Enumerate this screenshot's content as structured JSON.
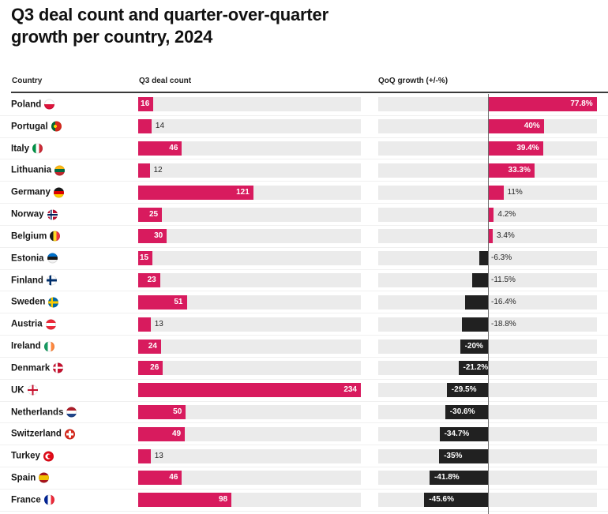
{
  "title": "Q3 deal count and quarter-over-quarter growth per country, 2024",
  "title_lines": "Q3 deal count and quarter-over-quarter\ngrowth per country, 2024",
  "columns": {
    "country": "Country",
    "deals": "Q3 deal count",
    "qoq": "QoQ growth (+/-%)"
  },
  "colors": {
    "positive_bar": "#d81b5e",
    "negative_bar": "#212121",
    "track": "#ebebeb",
    "axis_line": "#6e6e6e",
    "text": "#161616"
  },
  "axes": {
    "deal_count_max": 234,
    "qoq_min": -78,
    "qoq_max": 78,
    "qoq_zero_line": true
  },
  "chart_data": {
    "type": "bar",
    "title": "Q3 deal count and quarter-over-quarter growth per country, 2024",
    "orientation": "horizontal",
    "grid": false,
    "legend": "none",
    "categories": [
      "Poland",
      "Portugal",
      "Italy",
      "Lithuania",
      "Germany",
      "Norway",
      "Belgium",
      "Estonia",
      "Finland",
      "Sweden",
      "Austria",
      "Ireland",
      "Denmark",
      "UK",
      "Netherlands",
      "Switzerland",
      "Turkey",
      "Spain",
      "France"
    ],
    "series": [
      {
        "name": "Q3 deal count",
        "axis_range": [
          0,
          234
        ],
        "values": [
          16,
          14,
          46,
          12,
          121,
          25,
          30,
          15,
          23,
          51,
          13,
          24,
          26,
          234,
          50,
          49,
          13,
          46,
          98
        ]
      },
      {
        "name": "QoQ growth (+/-%)",
        "axis_range": [
          -78,
          78
        ],
        "values": [
          77.8,
          40,
          39.4,
          33.3,
          11,
          4.2,
          3.4,
          -6.3,
          -11.5,
          -16.4,
          -18.8,
          -20,
          -21.2,
          -29.5,
          -30.6,
          -34.7,
          -35,
          -41.8,
          -45.6
        ]
      }
    ],
    "value_labels": {
      "deal_count": [
        "16",
        "14",
        "46",
        "12",
        "121",
        "25",
        "30",
        "15",
        "23",
        "51",
        "13",
        "24",
        "26",
        "234",
        "50",
        "49",
        "13",
        "46",
        "98"
      ],
      "qoq_growth": [
        "77.8%",
        "40%",
        "39.4%",
        "33.3%",
        "11%",
        "4.2%",
        "3.4%",
        "-6.3%",
        "-11.5%",
        "-16.4%",
        "-18.8%",
        "-20%",
        "-21.2%",
        "-29.5%",
        "-30.6%",
        "-34.7%",
        "-35%",
        "-41.8%",
        "-45.6%"
      ]
    }
  },
  "rows": [
    {
      "country": "Poland",
      "flag": "poland",
      "deals": 16,
      "deals_label": "16",
      "qoq": 77.8,
      "qoq_label": "77.8%"
    },
    {
      "country": "Portugal",
      "flag": "portugal",
      "deals": 14,
      "deals_label": "14",
      "qoq": 40,
      "qoq_label": "40%"
    },
    {
      "country": "Italy",
      "flag": "italy",
      "deals": 46,
      "deals_label": "46",
      "qoq": 39.4,
      "qoq_label": "39.4%"
    },
    {
      "country": "Lithuania",
      "flag": "lithuania",
      "deals": 12,
      "deals_label": "12",
      "qoq": 33.3,
      "qoq_label": "33.3%"
    },
    {
      "country": "Germany",
      "flag": "germany",
      "deals": 121,
      "deals_label": "121",
      "qoq": 11,
      "qoq_label": "11%"
    },
    {
      "country": "Norway",
      "flag": "norway",
      "deals": 25,
      "deals_label": "25",
      "qoq": 4.2,
      "qoq_label": "4.2%"
    },
    {
      "country": "Belgium",
      "flag": "belgium",
      "deals": 30,
      "deals_label": "30",
      "qoq": 3.4,
      "qoq_label": "3.4%"
    },
    {
      "country": "Estonia",
      "flag": "estonia",
      "deals": 15,
      "deals_label": "15",
      "qoq": -6.3,
      "qoq_label": "-6.3%"
    },
    {
      "country": "Finland",
      "flag": "finland",
      "deals": 23,
      "deals_label": "23",
      "qoq": -11.5,
      "qoq_label": "-11.5%"
    },
    {
      "country": "Sweden",
      "flag": "sweden",
      "deals": 51,
      "deals_label": "51",
      "qoq": -16.4,
      "qoq_label": "-16.4%"
    },
    {
      "country": "Austria",
      "flag": "austria",
      "deals": 13,
      "deals_label": "13",
      "qoq": -18.8,
      "qoq_label": "-18.8%"
    },
    {
      "country": "Ireland",
      "flag": "ireland",
      "deals": 24,
      "deals_label": "24",
      "qoq": -20,
      "qoq_label": "-20%"
    },
    {
      "country": "Denmark",
      "flag": "denmark",
      "deals": 26,
      "deals_label": "26",
      "qoq": -21.2,
      "qoq_label": "-21.2%"
    },
    {
      "country": "UK",
      "flag": "uk",
      "deals": 234,
      "deals_label": "234",
      "qoq": -29.5,
      "qoq_label": "-29.5%"
    },
    {
      "country": "Netherlands",
      "flag": "netherlands",
      "deals": 50,
      "deals_label": "50",
      "qoq": -30.6,
      "qoq_label": "-30.6%"
    },
    {
      "country": "Switzerland",
      "flag": "switzerland",
      "deals": 49,
      "deals_label": "49",
      "qoq": -34.7,
      "qoq_label": "-34.7%"
    },
    {
      "country": "Turkey",
      "flag": "turkey",
      "deals": 13,
      "deals_label": "13",
      "qoq": -35,
      "qoq_label": "-35%"
    },
    {
      "country": "Spain",
      "flag": "spain",
      "deals": 46,
      "deals_label": "46",
      "qoq": -41.8,
      "qoq_label": "-41.8%"
    },
    {
      "country": "France",
      "flag": "france",
      "deals": 98,
      "deals_label": "98",
      "qoq": -45.6,
      "qoq_label": "-45.6%"
    }
  ]
}
